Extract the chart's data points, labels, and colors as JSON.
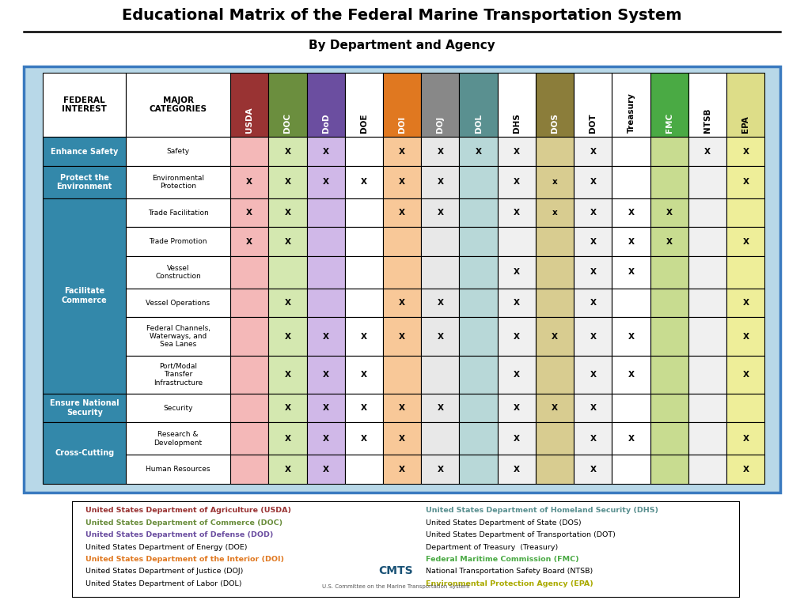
{
  "title": "Educational Matrix of the Federal Marine Transportation System",
  "subtitle": "By Department and Agency",
  "background_color": "#b8d8e8",
  "outer_bg": "#ffffff",
  "table_border_color": "#3a7abf",
  "col_headers": [
    "USDA",
    "DOC",
    "DoD",
    "DOE",
    "DOI",
    "DOJ",
    "DOL",
    "DHS",
    "DOS",
    "DOT",
    "Treasury",
    "FMC",
    "NTSB",
    "EPA"
  ],
  "col_header_colors": [
    "#993333",
    "#6b8e3e",
    "#6b4ea0",
    "#ffffff",
    "#e07820",
    "#888888",
    "#5a9090",
    "#ffffff",
    "#8b7d3a",
    "#ffffff",
    "#ffffff",
    "#4aaa44",
    "#ffffff",
    "#dddd88"
  ],
  "col_header_text_colors": [
    "#ffffff",
    "#ffffff",
    "#ffffff",
    "#000000",
    "#ffffff",
    "#ffffff",
    "#ffffff",
    "#000000",
    "#ffffff",
    "#000000",
    "#000000",
    "#ffffff",
    "#000000",
    "#000000"
  ],
  "federal_interest_col_color": "#3388aa",
  "federal_interest_text_color": "#ffffff",
  "rows": [
    {
      "major_category": "Safety",
      "marks": [
        "",
        "X",
        "X",
        "",
        "X",
        "X",
        "X",
        "X",
        "",
        "X",
        "",
        "",
        "X",
        "X"
      ],
      "cell_colors": [
        "#f4b8b8",
        "#d4e8b0",
        "#d0b8e8",
        "#ffffff",
        "#f8c898",
        "#e8e8e8",
        "#b8d8d8",
        "#f0f0f0",
        "#d8cc90",
        "#f0f0f0",
        "#ffffff",
        "#c8dc90",
        "#f0f0f0",
        "#eeee99"
      ]
    },
    {
      "major_category": "Environmental\nProtection",
      "marks": [
        "X",
        "X",
        "X",
        "X",
        "X",
        "X",
        "",
        "X",
        "x",
        "X",
        "",
        "",
        "",
        "X"
      ],
      "cell_colors": [
        "#f4b8b8",
        "#d4e8b0",
        "#d0b8e8",
        "#ffffff",
        "#f8c898",
        "#e8e8e8",
        "#b8d8d8",
        "#f0f0f0",
        "#d8cc90",
        "#f0f0f0",
        "#ffffff",
        "#c8dc90",
        "#f0f0f0",
        "#eeee99"
      ]
    },
    {
      "major_category": "Trade Facilitation",
      "marks": [
        "X",
        "X",
        "",
        "",
        "X",
        "X",
        "",
        "X",
        "x",
        "X",
        "X",
        "X",
        "",
        ""
      ],
      "cell_colors": [
        "#f4b8b8",
        "#d4e8b0",
        "#d0b8e8",
        "#ffffff",
        "#f8c898",
        "#e8e8e8",
        "#b8d8d8",
        "#f0f0f0",
        "#d8cc90",
        "#f0f0f0",
        "#ffffff",
        "#c8dc90",
        "#f0f0f0",
        "#eeee99"
      ]
    },
    {
      "major_category": "Trade Promotion",
      "marks": [
        "X",
        "X",
        "",
        "",
        "",
        "",
        "",
        "",
        "",
        "X",
        "X",
        "X",
        "",
        "X"
      ],
      "cell_colors": [
        "#f4b8b8",
        "#d4e8b0",
        "#d0b8e8",
        "#ffffff",
        "#f8c898",
        "#e8e8e8",
        "#b8d8d8",
        "#f0f0f0",
        "#d8cc90",
        "#f0f0f0",
        "#ffffff",
        "#c8dc90",
        "#f0f0f0",
        "#eeee99"
      ]
    },
    {
      "major_category": "Vessel\nConstruction",
      "marks": [
        "",
        "",
        "",
        "",
        "",
        "",
        "",
        "X",
        "",
        "X",
        "X",
        "",
        "",
        ""
      ],
      "cell_colors": [
        "#f4b8b8",
        "#d4e8b0",
        "#d0b8e8",
        "#ffffff",
        "#f8c898",
        "#e8e8e8",
        "#b8d8d8",
        "#f0f0f0",
        "#d8cc90",
        "#f0f0f0",
        "#ffffff",
        "#c8dc90",
        "#f0f0f0",
        "#eeee99"
      ]
    },
    {
      "major_category": "Vessel Operations",
      "marks": [
        "",
        "X",
        "",
        "",
        "X",
        "X",
        "",
        "X",
        "",
        "X",
        "",
        "",
        "",
        "X"
      ],
      "cell_colors": [
        "#f4b8b8",
        "#d4e8b0",
        "#d0b8e8",
        "#ffffff",
        "#f8c898",
        "#e8e8e8",
        "#b8d8d8",
        "#f0f0f0",
        "#d8cc90",
        "#f0f0f0",
        "#ffffff",
        "#c8dc90",
        "#f0f0f0",
        "#eeee99"
      ]
    },
    {
      "major_category": "Federal Channels,\nWaterways, and\nSea Lanes",
      "marks": [
        "",
        "X",
        "X",
        "X",
        "X",
        "X",
        "",
        "X",
        "X",
        "X",
        "X",
        "",
        "",
        "X"
      ],
      "cell_colors": [
        "#f4b8b8",
        "#d4e8b0",
        "#d0b8e8",
        "#ffffff",
        "#f8c898",
        "#e8e8e8",
        "#b8d8d8",
        "#f0f0f0",
        "#d8cc90",
        "#f0f0f0",
        "#ffffff",
        "#c8dc90",
        "#f0f0f0",
        "#eeee99"
      ]
    },
    {
      "major_category": "Port/Modal\nTransfer\nInfrastructure",
      "marks": [
        "",
        "X",
        "X",
        "X",
        "",
        "",
        "",
        "X",
        "",
        "X",
        "X",
        "",
        "",
        "X"
      ],
      "cell_colors": [
        "#f4b8b8",
        "#d4e8b0",
        "#d0b8e8",
        "#ffffff",
        "#f8c898",
        "#e8e8e8",
        "#b8d8d8",
        "#f0f0f0",
        "#d8cc90",
        "#f0f0f0",
        "#ffffff",
        "#c8dc90",
        "#f0f0f0",
        "#eeee99"
      ]
    },
    {
      "major_category": "Security",
      "marks": [
        "",
        "X",
        "X",
        "X",
        "X",
        "X",
        "",
        "X",
        "X",
        "X",
        "",
        "",
        "",
        ""
      ],
      "cell_colors": [
        "#f4b8b8",
        "#d4e8b0",
        "#d0b8e8",
        "#ffffff",
        "#f8c898",
        "#e8e8e8",
        "#b8d8d8",
        "#f0f0f0",
        "#d8cc90",
        "#f0f0f0",
        "#ffffff",
        "#c8dc90",
        "#f0f0f0",
        "#eeee99"
      ]
    },
    {
      "major_category": "Research &\nDevelopment",
      "marks": [
        "",
        "X",
        "X",
        "X",
        "X",
        "",
        "",
        "X",
        "",
        "X",
        "X",
        "",
        "",
        "X"
      ],
      "cell_colors": [
        "#f4b8b8",
        "#d4e8b0",
        "#d0b8e8",
        "#ffffff",
        "#f8c898",
        "#e8e8e8",
        "#b8d8d8",
        "#f0f0f0",
        "#d8cc90",
        "#f0f0f0",
        "#ffffff",
        "#c8dc90",
        "#f0f0f0",
        "#eeee99"
      ]
    },
    {
      "major_category": "Human Resources",
      "marks": [
        "",
        "X",
        "X",
        "",
        "X",
        "X",
        "",
        "X",
        "",
        "X",
        "",
        "",
        "",
        "X"
      ],
      "cell_colors": [
        "#f4b8b8",
        "#d4e8b0",
        "#d0b8e8",
        "#ffffff",
        "#f8c898",
        "#e8e8e8",
        "#b8d8d8",
        "#f0f0f0",
        "#d8cc90",
        "#f0f0f0",
        "#ffffff",
        "#c8dc90",
        "#f0f0f0",
        "#eeee99"
      ]
    }
  ],
  "federal_interest_groups": [
    {
      "label": "Enhance Safety",
      "rows": [
        0
      ]
    },
    {
      "label": "Protect the\nEnvironment",
      "rows": [
        1
      ]
    },
    {
      "label": "Facilitate\nCommerce",
      "rows": [
        2,
        3,
        4,
        5,
        6,
        7
      ]
    },
    {
      "label": "Ensure National\nSecurity",
      "rows": [
        8
      ]
    },
    {
      "label": "Cross-Cutting",
      "rows": [
        9,
        10
      ]
    }
  ],
  "legend_left": [
    {
      "text": "United States Department of Agriculture (USDA)",
      "color": "#993333",
      "bold": true
    },
    {
      "text": "United States Department of Commerce (DOC)",
      "color": "#6b8e3e",
      "bold": true
    },
    {
      "text": "United States Department of Defense (DOD)",
      "color": "#6b4ea0",
      "bold": true
    },
    {
      "text": "United States Department of Energy (DOE)",
      "color": "#000000",
      "bold": false
    },
    {
      "text": "United States Department of the Interior (DOI)",
      "color": "#e07820",
      "bold": true
    },
    {
      "text": "United States Department of Justice (DOJ)",
      "color": "#000000",
      "bold": false
    },
    {
      "text": "United States Department of Labor (DOL)",
      "color": "#000000",
      "bold": false
    }
  ],
  "legend_right": [
    {
      "text": "United States Department of Homeland Security (DHS)",
      "color": "#5a9090",
      "bold": true
    },
    {
      "text": "United States Department of State (DOS)",
      "color": "#000000",
      "bold": false
    },
    {
      "text": "United States Department of Transportation (DOT)",
      "color": "#000000",
      "bold": false
    },
    {
      "text": "Department of Treasury  (Treasury)",
      "color": "#000000",
      "bold": false
    },
    {
      "text": "Federal Maritime Commission (FMC)",
      "color": "#4aaa44",
      "bold": true
    },
    {
      "text": "National Transportation Safety Board (NTSB)",
      "color": "#000000",
      "bold": false
    },
    {
      "text": "Environmental Protection Agency (EPA)",
      "color": "#aaaa00",
      "bold": true
    }
  ]
}
